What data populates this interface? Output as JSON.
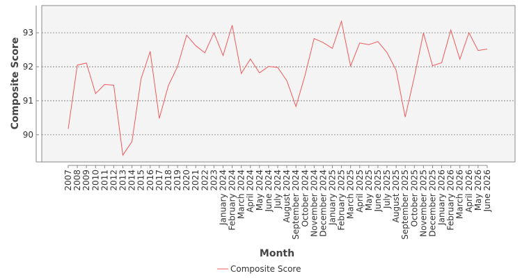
{
  "chart_data": {
    "type": "line",
    "xlabel": "Month",
    "ylabel": "Composite Score",
    "ylim": [
      89.2,
      93.8
    ],
    "yticks": [
      90,
      91,
      92,
      93
    ],
    "grid": true,
    "legend_position": "bottom-center",
    "categories": [
      "2007",
      "2008",
      "2009",
      "2010",
      "2011",
      "2012",
      "2013",
      "2014",
      "2015",
      "2016",
      "2017",
      "2018",
      "2019",
      "2020",
      "2021",
      "2022",
      "2023",
      "January 2024",
      "February 2024",
      "March 2024",
      "April 2024",
      "May 2024",
      "June 2024",
      "July 2024",
      "August 2024",
      "September 2024",
      "October 2024",
      "November 2024",
      "December 2024",
      "January 2025",
      "February 2025",
      "March 2025",
      "April 2025",
      "May 2025",
      "June 2025",
      "July 2025",
      "August 2025",
      "September 2025",
      "October 2025",
      "November 2025",
      "December 2025",
      "January 2026",
      "February 2026",
      "March 2026",
      "April 2026",
      "May 2026",
      "June 2026"
    ],
    "series": [
      {
        "name": "Composite Score",
        "color": "#f0585a",
        "values": [
          90.17,
          92.05,
          92.11,
          91.21,
          91.48,
          91.46,
          89.4,
          89.8,
          91.65,
          92.45,
          90.48,
          91.45,
          92.0,
          92.93,
          92.62,
          92.41,
          93.0,
          92.33,
          93.22,
          91.8,
          92.23,
          91.82,
          92.01,
          91.98,
          91.59,
          90.83,
          91.75,
          92.83,
          92.71,
          92.54,
          93.34,
          92.02,
          92.7,
          92.65,
          92.74,
          92.42,
          91.9,
          90.52,
          91.7,
          92.99,
          92.03,
          92.12,
          93.08,
          92.22,
          93.0,
          92.48,
          92.52
        ]
      }
    ],
    "legend": [
      "Composite Score"
    ]
  }
}
